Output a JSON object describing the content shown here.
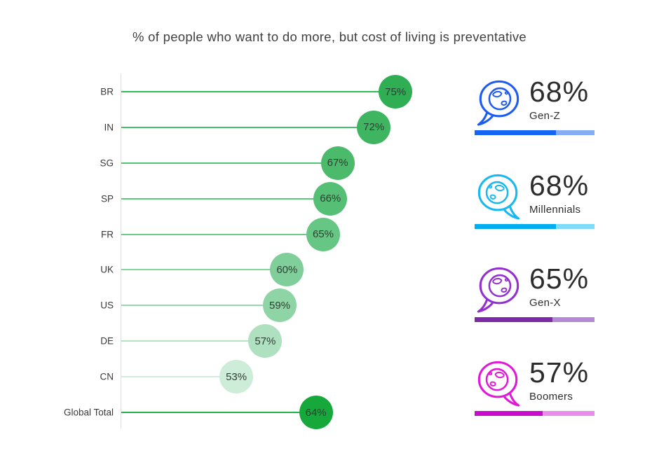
{
  "title": "% of people who want to do more, but cost of living is preventative",
  "chart_data": {
    "type": "bar",
    "variant": "lollipop",
    "title": "% of people who want to do more, but cost of living is preventative",
    "categories": [
      "BR",
      "IN",
      "SG",
      "SP",
      "FR",
      "UK",
      "US",
      "DE",
      "CN",
      "Global Total"
    ],
    "values": [
      75,
      72,
      67,
      66,
      65,
      60,
      59,
      57,
      53,
      64
    ],
    "value_labels": [
      "75%",
      "72%",
      "67%",
      "66%",
      "65%",
      "60%",
      "59%",
      "57%",
      "53%",
      "64%"
    ],
    "unit": "%",
    "xlabel": "",
    "ylabel": "",
    "x_axis_range_pct": [
      37,
      80
    ],
    "grid": false,
    "legend_position": "none",
    "bubble_colors": [
      "#2fae53",
      "#3fb562",
      "#4cba6b",
      "#55c075",
      "#66c683",
      "#80ce99",
      "#8fd4a5",
      "#afe0bf",
      "#cdedd8",
      "#17a83c"
    ],
    "stem_colors": [
      "#2cbd55",
      "#44c168",
      "#52c572",
      "#5bc97b",
      "#6ccd88",
      "#85d59e",
      "#93d9aa",
      "#b3e4c2",
      "#d0efdb",
      "#1fb34a"
    ]
  },
  "generations": [
    {
      "label": "Gen-Z",
      "value_label": "68%",
      "pct": 68,
      "icon": "globe-speech-bubble-icon",
      "icon_color": "#1c5cf2",
      "bar_fill": "#1465f2",
      "bar_track": "#85acf5",
      "tail": "left"
    },
    {
      "label": "Millennials",
      "value_label": "68%",
      "pct": 68,
      "icon": "globe-speech-bubble-icon",
      "icon_color": "#1ab8f0",
      "bar_fill": "#00adef",
      "bar_track": "#7edbf9",
      "tail": "right"
    },
    {
      "label": "Gen-X",
      "value_label": "65%",
      "pct": 65,
      "icon": "globe-speech-bubble-icon",
      "icon_color": "#9430cf",
      "bar_fill": "#7c2aa6",
      "bar_track": "#b58ad5",
      "tail": "left"
    },
    {
      "label": "Boomers",
      "value_label": "57%",
      "pct": 57,
      "icon": "globe-speech-bubble-icon",
      "icon_color": "#e218d8",
      "bar_fill": "#c70ccd",
      "bar_track": "#ea8ceb",
      "tail": "right"
    }
  ]
}
